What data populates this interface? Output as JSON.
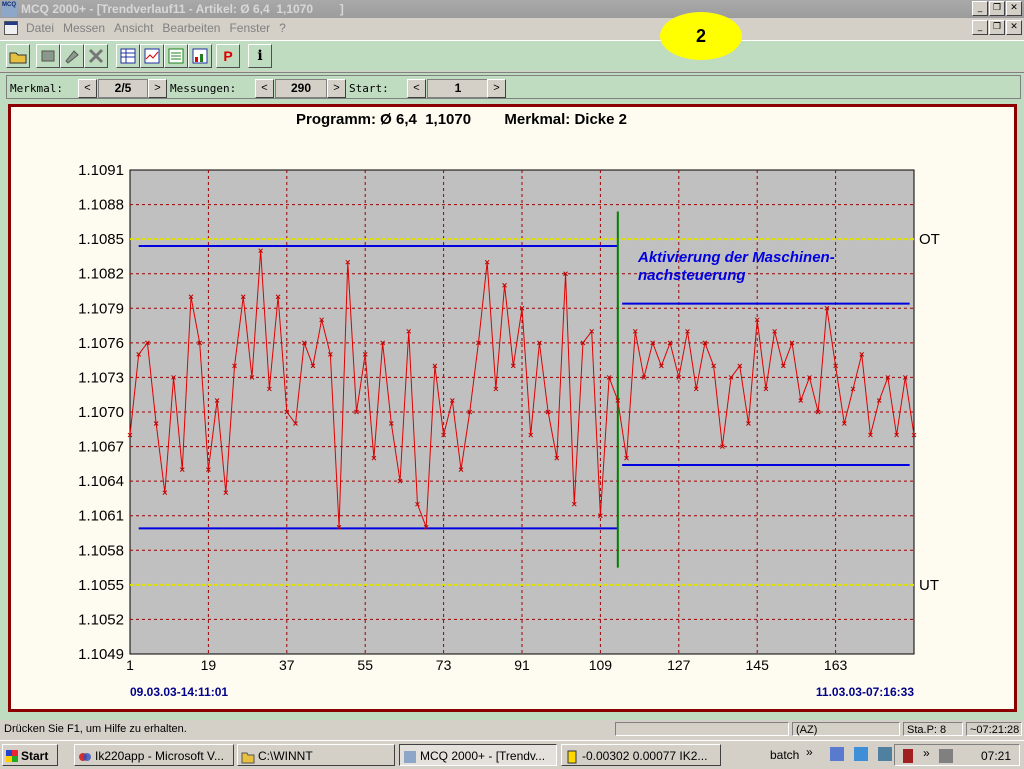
{
  "window": {
    "title": "MCQ 2000+ - [Trendverlauf11 - Artikel: Ø 6,4  1,1070        ]",
    "app_icon_text": "MCQ"
  },
  "menu": [
    "Datei",
    "Messen",
    "Ansicht",
    "Bearbeiten",
    "Fenster",
    "?"
  ],
  "callout": "2",
  "toolbar": {
    "buttons": [
      {
        "icon": "open-folder-icon"
      },
      {
        "icon": "measure-icon"
      },
      {
        "icon": "tools-icon"
      },
      {
        "icon": "cross-icon"
      },
      {
        "icon": "table-icon"
      },
      {
        "icon": "chart-icon"
      },
      {
        "icon": "list-chart-icon"
      },
      {
        "icon": "sheet-icon"
      },
      {
        "icon": "p-icon",
        "label": "P"
      },
      {
        "icon": "info-icon",
        "label": "i"
      }
    ]
  },
  "nav": {
    "merkmal_label": "Merkmal:",
    "merkmal_value": "2/5",
    "messungen_label": "Messungen:",
    "messungen_value": "290",
    "start_label": "Start:",
    "start_value": "1",
    "prev": "<",
    "next": ">"
  },
  "chart_data": {
    "type": "line",
    "title": "Programm: Ø 6,4  1,1070        Merkmal: Dicke 2",
    "y_ticks": [
      "1.1091",
      "1.1088",
      "1.1085",
      "1.1082",
      "1.1079",
      "1.1076",
      "1.1073",
      "1.1070",
      "1.1067",
      "1.1064",
      "1.1061",
      "1.1058",
      "1.1055",
      "1.1052",
      "1.1049"
    ],
    "x_ticks": [
      "1",
      "19",
      "37",
      "55",
      "73",
      "91",
      "109",
      "127",
      "145",
      "163"
    ],
    "ylim": [
      1.1049,
      1.1091
    ],
    "xlim": [
      1,
      181
    ],
    "grid": true,
    "limits": {
      "OT": 1.1085,
      "UT": 1.1055
    },
    "start_date": "09.03.03-14:11:01",
    "end_date": "11.03.03-07:16:33",
    "annotation": [
      "Aktivierung der Maschinen-",
      "nachsteuerung"
    ],
    "activation_x": 113,
    "band_before": {
      "upper": 1.10844,
      "lower": 1.10599,
      "x": [
        3,
        113
      ]
    },
    "band_after": {
      "upper": 1.10794,
      "lower": 1.10654,
      "x": [
        114,
        180
      ]
    },
    "series": [
      {
        "color": "#e00000",
        "x": [
          1,
          3,
          5,
          7,
          9,
          11,
          13,
          15,
          17,
          19,
          21,
          23,
          25,
          27,
          29,
          31,
          33,
          35,
          37,
          39,
          41,
          43,
          45,
          47,
          49,
          51,
          53,
          55,
          57,
          59,
          61,
          63,
          65,
          67,
          69,
          71,
          73,
          75,
          77,
          79,
          81,
          83,
          85,
          87,
          89,
          91,
          93,
          95,
          97,
          99,
          101,
          103,
          105,
          107,
          109,
          111,
          113,
          115,
          117,
          119,
          121,
          123,
          125,
          127,
          129,
          131,
          133,
          135,
          137,
          139,
          141,
          143,
          145,
          147,
          149,
          151,
          153,
          155,
          157,
          159,
          161,
          163,
          165,
          167,
          169,
          171,
          173,
          175,
          177,
          179,
          181
        ],
        "y": [
          1.1068,
          1.1075,
          1.1076,
          1.1069,
          1.1063,
          1.1073,
          1.1065,
          1.108,
          1.1076,
          1.1065,
          1.1071,
          1.1063,
          1.1074,
          1.108,
          1.1073,
          1.1084,
          1.1072,
          1.108,
          1.107,
          1.1069,
          1.1076,
          1.1074,
          1.1078,
          1.1075,
          1.106,
          1.1083,
          1.107,
          1.1075,
          1.1066,
          1.1076,
          1.1069,
          1.1064,
          1.1077,
          1.1062,
          1.106,
          1.1074,
          1.1068,
          1.1071,
          1.1065,
          1.107,
          1.1076,
          1.1083,
          1.1072,
          1.1081,
          1.1074,
          1.1079,
          1.1068,
          1.1076,
          1.107,
          1.1066,
          1.1082,
          1.1062,
          1.1076,
          1.1077,
          1.1061,
          1.1073,
          1.1071,
          1.1066,
          1.1077,
          1.1073,
          1.1076,
          1.1074,
          1.1076,
          1.1073,
          1.1077,
          1.1072,
          1.1076,
          1.1074,
          1.1067,
          1.1073,
          1.1074,
          1.1069,
          1.1078,
          1.1072,
          1.1077,
          1.1074,
          1.1076,
          1.1071,
          1.1073,
          1.107,
          1.1079,
          1.1074,
          1.1069,
          1.1072,
          1.1075,
          1.1068,
          1.1071,
          1.1073,
          1.1068,
          1.1073,
          1.1068
        ]
      }
    ]
  },
  "status": {
    "help": "Drücken Sie F1, um Hilfe zu erhalten.",
    "az": "(AZ)",
    "stap": "Sta.P:  8",
    "time": "~07:21:28"
  },
  "taskbar": {
    "start": "Start",
    "tasks": [
      "Ik220app - Microsoft V...",
      "C:\\WINNT",
      "MCQ 2000+ - [Trendv...",
      "-0.00302 0.00077 IK2..."
    ],
    "batch": "batch",
    "clock": "07:21"
  }
}
